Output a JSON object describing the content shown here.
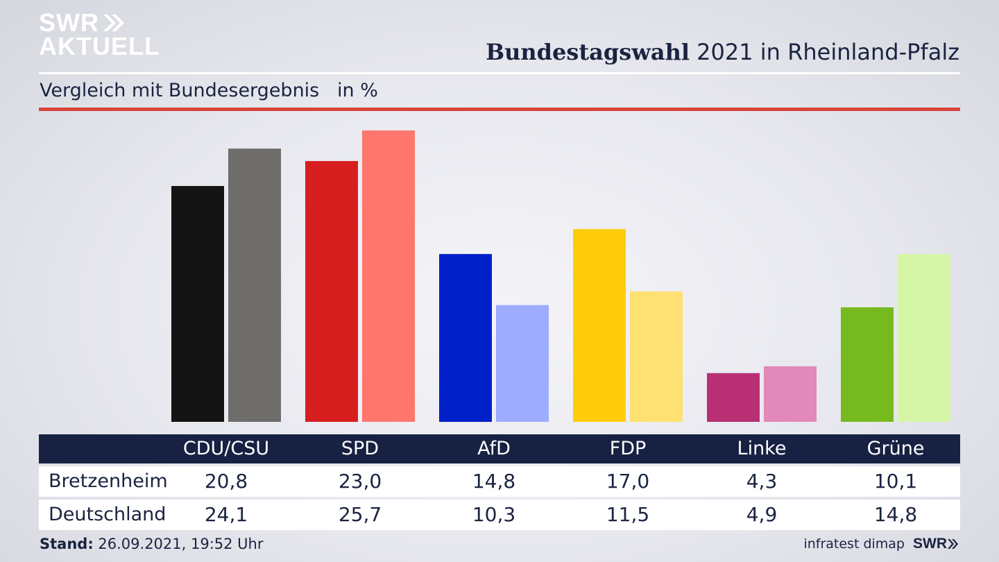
{
  "brand": {
    "line1": "SWR",
    "line2": "AKTUELL",
    "footer_brand": "SWR",
    "logo_color": "#ffffff"
  },
  "title": {
    "bold": "Bundestagswahl",
    "rest": " 2021 in Rheinland-Pfalz"
  },
  "subtitle": "Vergleich mit Bundesergebnis   in %",
  "footer": {
    "stand_label": "Stand:",
    "stand_value": " 26.09.2021, 19:52 Uhr",
    "source": "infratest dimap"
  },
  "colors": {
    "text": "#1a2340",
    "header_bg": "#172142",
    "accent_rule": "#d9433a"
  },
  "chart_data": {
    "type": "bar",
    "categories": [
      "CDU/CSU",
      "SPD",
      "AfD",
      "FDP",
      "Linke",
      "Grüne"
    ],
    "series": [
      {
        "name": "Bretzenheim",
        "values": [
          "20,8",
          "23,0",
          "14,8",
          "17,0",
          "4,3",
          "10,1"
        ],
        "colors": [
          "#141414",
          "#d61e1e",
          "#0020c8",
          "#ffcc0c",
          "#b82f74",
          "#77ba1f"
        ]
      },
      {
        "name": "Deutschland",
        "values": [
          "24,1",
          "25,7",
          "10,3",
          "11,5",
          "4,9",
          "14,8"
        ],
        "colors": [
          "#6f6d6c",
          "#ff766d",
          "#9eacff",
          "#ffe072",
          "#e189b8",
          "#d5f6a7"
        ]
      }
    ],
    "ylim": [
      0,
      25.7
    ],
    "grid": false,
    "legend": "table-below"
  }
}
